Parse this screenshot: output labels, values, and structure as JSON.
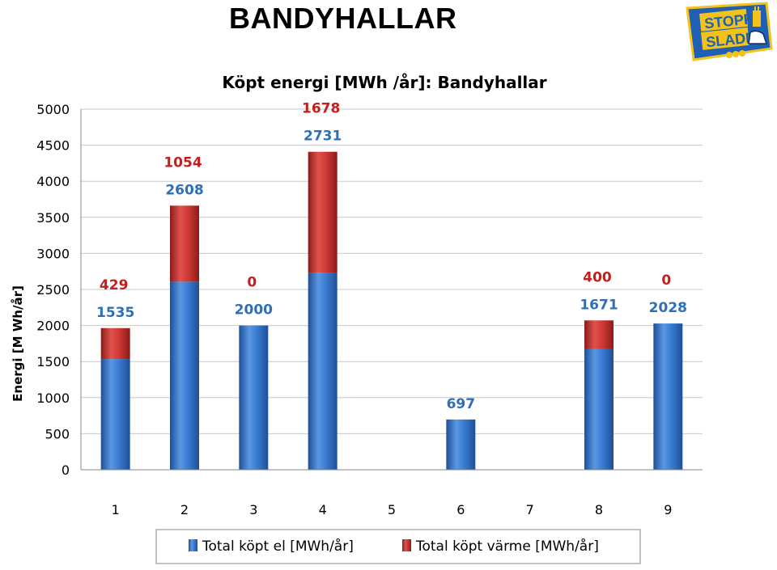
{
  "slide": {
    "title": "BANDYHALLAR"
  },
  "logo": {
    "line1": "STOPP",
    "line2": "SLADD",
    "icon": "stopp-sladd-logo"
  },
  "colors": {
    "el": "#3b7dd2",
    "el_dark": "#1f4f98",
    "heat": "#d03a36",
    "heat_dark": "#8e1b18",
    "el_label": "#2f6fb8",
    "heat_label": "#c0201e",
    "grid": "#c8c8c8"
  },
  "chart_data": {
    "type": "bar",
    "stacked": true,
    "title": "Köpt energi [MWh /år]: Bandyhallar",
    "xlabel": "",
    "ylabel": "Energi [M Wh/år]",
    "ylim": [
      0,
      5000
    ],
    "ytick_step": 500,
    "grid": true,
    "legend_position": "bottom",
    "categories": [
      "1",
      "2",
      "3",
      "4",
      "5",
      "6",
      "7",
      "8",
      "9"
    ],
    "series": [
      {
        "name": "Total köpt el [MWh/år]",
        "values": [
          1535,
          2608,
          2000,
          2731,
          null,
          697,
          null,
          1671,
          2028
        ]
      },
      {
        "name": "Total köpt värme [MWh/år]",
        "values": [
          429,
          1054,
          0,
          1678,
          null,
          null,
          null,
          400,
          0
        ]
      }
    ]
  }
}
